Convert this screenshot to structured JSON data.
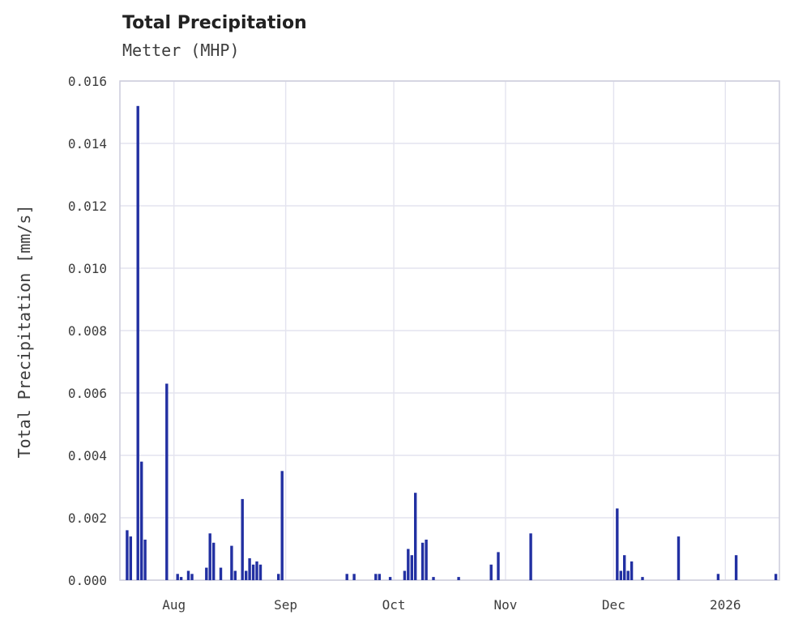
{
  "chart": {
    "title": "Total Precipitation",
    "subtitle": "Metter (MHP)",
    "ylabel": "Total Precipitation [mm/s]"
  },
  "chart_data": {
    "type": "bar",
    "title": "Total Precipitation",
    "subtitle": "Metter (MHP)",
    "xlabel": "",
    "ylabel": "Total Precipitation [mm/s]",
    "ylim": [
      0,
      0.016
    ],
    "grid": true,
    "legend": false,
    "bar_color": "#2230a2",
    "grid_color": "#e4e4ef",
    "spine_color": "#cfcfdd",
    "x_domain": [
      "2025-07-17",
      "2026-01-16"
    ],
    "yticks": [
      0,
      0.002,
      0.004,
      0.006,
      0.008,
      0.01,
      0.012,
      0.014,
      0.016
    ],
    "ytick_labels": [
      "0.000",
      "0.002",
      "0.004",
      "0.006",
      "0.008",
      "0.010",
      "0.012",
      "0.014",
      "0.016"
    ],
    "xticks": [
      {
        "date": "2025-08-01",
        "label": "Aug"
      },
      {
        "date": "2025-09-01",
        "label": "Sep"
      },
      {
        "date": "2025-10-01",
        "label": "Oct"
      },
      {
        "date": "2025-11-01",
        "label": "Nov"
      },
      {
        "date": "2025-12-01",
        "label": "Dec"
      },
      {
        "date": "2026-01-01",
        "label": "2026"
      }
    ],
    "points": [
      {
        "date": "2025-07-19",
        "value": 0.0016
      },
      {
        "date": "2025-07-20",
        "value": 0.0014
      },
      {
        "date": "2025-07-22",
        "value": 0.0152
      },
      {
        "date": "2025-07-23",
        "value": 0.0038
      },
      {
        "date": "2025-07-24",
        "value": 0.0013
      },
      {
        "date": "2025-07-30",
        "value": 0.0063
      },
      {
        "date": "2025-08-02",
        "value": 0.0002
      },
      {
        "date": "2025-08-03",
        "value": 0.0001
      },
      {
        "date": "2025-08-05",
        "value": 0.0003
      },
      {
        "date": "2025-08-06",
        "value": 0.0002
      },
      {
        "date": "2025-08-10",
        "value": 0.0004
      },
      {
        "date": "2025-08-11",
        "value": 0.0015
      },
      {
        "date": "2025-08-12",
        "value": 0.0012
      },
      {
        "date": "2025-08-14",
        "value": 0.0004
      },
      {
        "date": "2025-08-17",
        "value": 0.0011
      },
      {
        "date": "2025-08-18",
        "value": 0.0003
      },
      {
        "date": "2025-08-20",
        "value": 0.0026
      },
      {
        "date": "2025-08-21",
        "value": 0.0003
      },
      {
        "date": "2025-08-22",
        "value": 0.0007
      },
      {
        "date": "2025-08-23",
        "value": 0.0005
      },
      {
        "date": "2025-08-24",
        "value": 0.0006
      },
      {
        "date": "2025-08-25",
        "value": 0.0005
      },
      {
        "date": "2025-08-30",
        "value": 0.0002
      },
      {
        "date": "2025-08-31",
        "value": 0.0035
      },
      {
        "date": "2025-09-18",
        "value": 0.0002
      },
      {
        "date": "2025-09-20",
        "value": 0.0002
      },
      {
        "date": "2025-09-26",
        "value": 0.0002
      },
      {
        "date": "2025-09-27",
        "value": 0.0002
      },
      {
        "date": "2025-09-30",
        "value": 0.0001
      },
      {
        "date": "2025-10-04",
        "value": 0.0003
      },
      {
        "date": "2025-10-05",
        "value": 0.001
      },
      {
        "date": "2025-10-06",
        "value": 0.0008
      },
      {
        "date": "2025-10-07",
        "value": 0.0028
      },
      {
        "date": "2025-10-09",
        "value": 0.0012
      },
      {
        "date": "2025-10-10",
        "value": 0.0013
      },
      {
        "date": "2025-10-12",
        "value": 0.0001
      },
      {
        "date": "2025-10-19",
        "value": 0.0001
      },
      {
        "date": "2025-10-28",
        "value": 0.0005
      },
      {
        "date": "2025-10-30",
        "value": 0.0009
      },
      {
        "date": "2025-11-08",
        "value": 0.0015
      },
      {
        "date": "2025-12-02",
        "value": 0.0023
      },
      {
        "date": "2025-12-03",
        "value": 0.0003
      },
      {
        "date": "2025-12-04",
        "value": 0.0008
      },
      {
        "date": "2025-12-05",
        "value": 0.0003
      },
      {
        "date": "2025-12-06",
        "value": 0.0006
      },
      {
        "date": "2025-12-09",
        "value": 0.0001
      },
      {
        "date": "2025-12-19",
        "value": 0.0014
      },
      {
        "date": "2025-12-30",
        "value": 0.0002
      },
      {
        "date": "2026-01-04",
        "value": 0.0008
      },
      {
        "date": "2026-01-15",
        "value": 0.0002
      }
    ]
  }
}
